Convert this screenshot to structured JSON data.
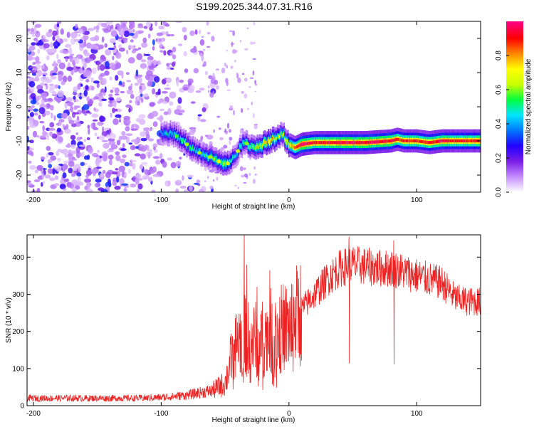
{
  "title": "S199.2025.344.07.31.R16",
  "chart_data": [
    {
      "type": "heatmap",
      "name": "spectrogram",
      "xlabel": "Height of straight line (km)",
      "ylabel": "Frequency (Hz)",
      "xlim": [
        -205,
        150
      ],
      "ylim": [
        -25,
        25
      ],
      "xticks": [
        -200,
        -100,
        0,
        100
      ],
      "yticks": [
        -20,
        -10,
        0,
        10,
        20
      ],
      "colorbar": {
        "label": "Normalized spectral amplitude",
        "range": [
          0,
          1
        ],
        "ticks": [
          0.0,
          0.2,
          0.4,
          0.6,
          0.8
        ],
        "stops": [
          "#ffffff",
          "#c58cff",
          "#7a1ee6",
          "#2200ff",
          "#0077ff",
          "#00e5ff",
          "#00ff40",
          "#c8ff00",
          "#ffff00",
          "#ff8800",
          "#ff0000",
          "#ff0088"
        ]
      },
      "noise_region_x": [
        -205,
        -55
      ],
      "signal_track": {
        "x": [
          -100,
          -90,
          -80,
          -70,
          -60,
          -50,
          -45,
          -40,
          -35,
          -30,
          -20,
          -15,
          -10,
          -5,
          0,
          5,
          10,
          20,
          40,
          60,
          80,
          85,
          90,
          100,
          110,
          120,
          130,
          150
        ],
        "y": [
          -7.5,
          -8,
          -11,
          -13.5,
          -15,
          -17,
          -16,
          -13,
          -10,
          -12,
          -11,
          -10,
          -9,
          -8,
          -11,
          -12,
          -11,
          -10.5,
          -10.5,
          -10.5,
          -10,
          -9.5,
          -10,
          -10,
          -10.5,
          -10,
          -10,
          -10
        ],
        "peak_amplitude": [
          0.4,
          0.45,
          0.5,
          0.45,
          0.55,
          0.6,
          0.45,
          0.4,
          0.45,
          0.5,
          0.7,
          0.75,
          0.6,
          0.55,
          0.7,
          0.85,
          1.0,
          0.9,
          0.95,
          0.95,
          0.95,
          0.9,
          0.9,
          0.9,
          0.9,
          0.95,
          0.9,
          0.9
        ]
      }
    },
    {
      "type": "line",
      "name": "snr",
      "xlabel": "Height of straight line (km)",
      "ylabel": "SNR (10 * v/v)",
      "xlim": [
        -205,
        150
      ],
      "ylim": [
        0,
        460
      ],
      "xticks": [
        -200,
        -100,
        0,
        100
      ],
      "yticks": [
        0,
        100,
        200,
        300,
        400
      ],
      "color": "#ee2222",
      "envelope": {
        "x": [
          -205,
          -120,
          -100,
          -80,
          -70,
          -60,
          -50,
          -45,
          -40,
          -35,
          -30,
          -25,
          -20,
          -15,
          -10,
          -5,
          0,
          10,
          20,
          30,
          40,
          50,
          60,
          70,
          80,
          90,
          100,
          110,
          120,
          130,
          140,
          150
        ],
        "y": [
          20,
          20,
          22,
          28,
          35,
          40,
          60,
          130,
          180,
          190,
          170,
          180,
          180,
          200,
          190,
          210,
          210,
          260,
          300,
          340,
          370,
          380,
          375,
          370,
          370,
          360,
          350,
          340,
          330,
          290,
          280,
          280
        ]
      },
      "spikes": [
        {
          "x": -35,
          "y": 460
        },
        {
          "x": -33,
          "y": 380
        },
        {
          "x": -15,
          "y": 365
        },
        {
          "x": -25,
          "y": 320
        },
        {
          "x": 47,
          "y": 455
        },
        {
          "x": 82,
          "y": 445
        }
      ]
    }
  ]
}
